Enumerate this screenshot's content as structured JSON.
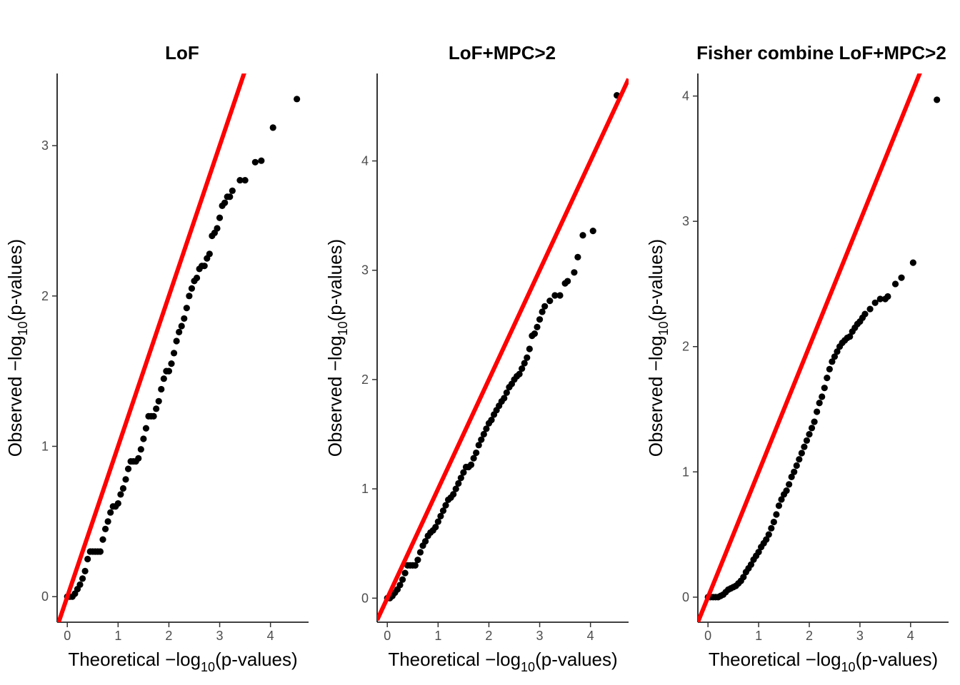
{
  "chart_data": [
    {
      "type": "scatter",
      "title": "LoF",
      "xlabel": {
        "prefix": "Theoretical ",
        "minus": "−",
        "log": "log",
        "base": "10",
        "suffix": "(p-values)"
      },
      "ylabel": {
        "prefix": "Observed ",
        "minus": "−",
        "log": "log",
        "base": "10",
        "suffix": "(p-values)"
      },
      "xlim": [
        -0.2,
        4.75
      ],
      "ylim": [
        -0.17,
        3.48
      ],
      "xticks": [
        0,
        1,
        2,
        3,
        4
      ],
      "yticks": [
        0,
        1,
        2,
        3
      ],
      "reference_line": {
        "slope": 1,
        "intercept": 0,
        "color": "#ff0000"
      },
      "series": [
        {
          "color": "#000000",
          "points": [
            [
              0.0,
              0.0
            ],
            [
              0.05,
              0.0
            ],
            [
              0.1,
              0.0
            ],
            [
              0.15,
              0.02
            ],
            [
              0.2,
              0.05
            ],
            [
              0.25,
              0.08
            ],
            [
              0.3,
              0.12
            ],
            [
              0.35,
              0.17
            ],
            [
              0.4,
              0.25
            ],
            [
              0.45,
              0.3
            ],
            [
              0.5,
              0.3
            ],
            [
              0.55,
              0.3
            ],
            [
              0.6,
              0.3
            ],
            [
              0.65,
              0.3
            ],
            [
              0.7,
              0.38
            ],
            [
              0.75,
              0.45
            ],
            [
              0.8,
              0.5
            ],
            [
              0.85,
              0.56
            ],
            [
              0.9,
              0.6
            ],
            [
              0.95,
              0.6
            ],
            [
              1.0,
              0.62
            ],
            [
              1.05,
              0.68
            ],
            [
              1.1,
              0.72
            ],
            [
              1.15,
              0.78
            ],
            [
              1.2,
              0.85
            ],
            [
              1.25,
              0.9
            ],
            [
              1.3,
              0.9
            ],
            [
              1.35,
              0.9
            ],
            [
              1.4,
              0.92
            ],
            [
              1.45,
              0.98
            ],
            [
              1.5,
              1.05
            ],
            [
              1.55,
              1.12
            ],
            [
              1.6,
              1.2
            ],
            [
              1.65,
              1.2
            ],
            [
              1.7,
              1.2
            ],
            [
              1.75,
              1.25
            ],
            [
              1.8,
              1.3
            ],
            [
              1.85,
              1.38
            ],
            [
              1.9,
              1.45
            ],
            [
              1.95,
              1.5
            ],
            [
              2.0,
              1.5
            ],
            [
              2.05,
              1.55
            ],
            [
              2.1,
              1.62
            ],
            [
              2.15,
              1.7
            ],
            [
              2.2,
              1.76
            ],
            [
              2.25,
              1.8
            ],
            [
              2.3,
              1.85
            ],
            [
              2.35,
              1.92
            ],
            [
              2.4,
              2.0
            ],
            [
              2.45,
              2.05
            ],
            [
              2.5,
              2.1
            ],
            [
              2.55,
              2.12
            ],
            [
              2.6,
              2.18
            ],
            [
              2.65,
              2.2
            ],
            [
              2.7,
              2.2
            ],
            [
              2.75,
              2.25
            ],
            [
              2.8,
              2.28
            ],
            [
              2.85,
              2.4
            ],
            [
              2.9,
              2.42
            ],
            [
              2.95,
              2.45
            ],
            [
              3.0,
              2.52
            ],
            [
              3.05,
              2.6
            ],
            [
              3.1,
              2.62
            ],
            [
              3.15,
              2.66
            ],
            [
              3.2,
              2.66
            ],
            [
              3.25,
              2.7
            ],
            [
              3.4,
              2.77
            ],
            [
              3.5,
              2.77
            ],
            [
              3.7,
              2.89
            ],
            [
              3.82,
              2.9
            ],
            [
              4.05,
              3.12
            ],
            [
              4.52,
              3.31
            ]
          ]
        }
      ]
    },
    {
      "type": "scatter",
      "title": "LoF+MPC>2",
      "xlabel": {
        "prefix": "Theoretical ",
        "minus": "−",
        "log": "log",
        "base": "10",
        "suffix": "(p-values)"
      },
      "ylabel": {
        "prefix": "Observed ",
        "minus": "−",
        "log": "log",
        "base": "10",
        "suffix": "(p-values)"
      },
      "xlim": [
        -0.2,
        4.75
      ],
      "ylim": [
        -0.22,
        4.8
      ],
      "xticks": [
        0,
        1,
        2,
        3,
        4
      ],
      "yticks": [
        0,
        1,
        2,
        3,
        4
      ],
      "reference_line": {
        "slope": 1,
        "intercept": 0,
        "color": "#ff0000"
      },
      "series": [
        {
          "color": "#000000",
          "points": [
            [
              0.0,
              0.0
            ],
            [
              0.05,
              0.0
            ],
            [
              0.1,
              0.02
            ],
            [
              0.15,
              0.05
            ],
            [
              0.2,
              0.08
            ],
            [
              0.25,
              0.12
            ],
            [
              0.3,
              0.17
            ],
            [
              0.35,
              0.23
            ],
            [
              0.4,
              0.3
            ],
            [
              0.45,
              0.3
            ],
            [
              0.5,
              0.3
            ],
            [
              0.55,
              0.3
            ],
            [
              0.6,
              0.35
            ],
            [
              0.65,
              0.42
            ],
            [
              0.7,
              0.48
            ],
            [
              0.75,
              0.52
            ],
            [
              0.8,
              0.57
            ],
            [
              0.85,
              0.6
            ],
            [
              0.9,
              0.62
            ],
            [
              0.95,
              0.65
            ],
            [
              1.0,
              0.7
            ],
            [
              1.05,
              0.75
            ],
            [
              1.1,
              0.8
            ],
            [
              1.15,
              0.85
            ],
            [
              1.2,
              0.9
            ],
            [
              1.25,
              0.92
            ],
            [
              1.3,
              0.95
            ],
            [
              1.35,
              1.0
            ],
            [
              1.4,
              1.05
            ],
            [
              1.45,
              1.1
            ],
            [
              1.5,
              1.15
            ],
            [
              1.55,
              1.2
            ],
            [
              1.6,
              1.2
            ],
            [
              1.65,
              1.22
            ],
            [
              1.7,
              1.28
            ],
            [
              1.75,
              1.33
            ],
            [
              1.8,
              1.4
            ],
            [
              1.85,
              1.45
            ],
            [
              1.9,
              1.5
            ],
            [
              1.95,
              1.55
            ],
            [
              2.0,
              1.6
            ],
            [
              2.05,
              1.63
            ],
            [
              2.1,
              1.68
            ],
            [
              2.15,
              1.72
            ],
            [
              2.2,
              1.76
            ],
            [
              2.25,
              1.8
            ],
            [
              2.3,
              1.83
            ],
            [
              2.35,
              1.88
            ],
            [
              2.4,
              1.93
            ],
            [
              2.45,
              1.96
            ],
            [
              2.5,
              2.0
            ],
            [
              2.55,
              2.03
            ],
            [
              2.6,
              2.05
            ],
            [
              2.65,
              2.1
            ],
            [
              2.7,
              2.15
            ],
            [
              2.75,
              2.2
            ],
            [
              2.8,
              2.28
            ],
            [
              2.85,
              2.4
            ],
            [
              2.9,
              2.42
            ],
            [
              2.95,
              2.48
            ],
            [
              3.0,
              2.55
            ],
            [
              3.05,
              2.62
            ],
            [
              3.1,
              2.67
            ],
            [
              3.2,
              2.72
            ],
            [
              3.3,
              2.77
            ],
            [
              3.4,
              2.77
            ],
            [
              3.5,
              2.88
            ],
            [
              3.55,
              2.9
            ],
            [
              3.68,
              2.98
            ],
            [
              3.75,
              3.12
            ],
            [
              3.85,
              3.32
            ],
            [
              4.05,
              3.36
            ],
            [
              4.52,
              4.6
            ]
          ]
        }
      ]
    },
    {
      "type": "scatter",
      "title": "Fisher combine LoF+MPC>2",
      "xlabel": {
        "prefix": "Theoretical ",
        "minus": "−",
        "log": "log",
        "base": "10",
        "suffix": "(p-values)"
      },
      "ylabel": {
        "prefix": "Observed ",
        "minus": "−",
        "log": "log",
        "base": "10",
        "suffix": "(p-values)"
      },
      "xlim": [
        -0.2,
        4.75
      ],
      "ylim": [
        -0.2,
        4.18
      ],
      "xticks": [
        0,
        1,
        2,
        3,
        4
      ],
      "yticks": [
        0,
        1,
        2,
        3,
        4
      ],
      "reference_line": {
        "slope": 1,
        "intercept": 0,
        "color": "#ff0000"
      },
      "series": [
        {
          "color": "#000000",
          "points": [
            [
              0.0,
              0.0
            ],
            [
              0.05,
              0.0
            ],
            [
              0.1,
              0.0
            ],
            [
              0.15,
              0.0
            ],
            [
              0.2,
              0.0
            ],
            [
              0.25,
              0.01
            ],
            [
              0.3,
              0.02
            ],
            [
              0.35,
              0.04
            ],
            [
              0.4,
              0.06
            ],
            [
              0.45,
              0.07
            ],
            [
              0.5,
              0.08
            ],
            [
              0.55,
              0.09
            ],
            [
              0.6,
              0.11
            ],
            [
              0.65,
              0.13
            ],
            [
              0.7,
              0.16
            ],
            [
              0.75,
              0.2
            ],
            [
              0.8,
              0.23
            ],
            [
              0.85,
              0.26
            ],
            [
              0.9,
              0.3
            ],
            [
              0.95,
              0.33
            ],
            [
              1.0,
              0.36
            ],
            [
              1.05,
              0.4
            ],
            [
              1.1,
              0.43
            ],
            [
              1.15,
              0.46
            ],
            [
              1.2,
              0.5
            ],
            [
              1.25,
              0.55
            ],
            [
              1.3,
              0.6
            ],
            [
              1.35,
              0.66
            ],
            [
              1.4,
              0.73
            ],
            [
              1.45,
              0.78
            ],
            [
              1.5,
              0.82
            ],
            [
              1.55,
              0.85
            ],
            [
              1.6,
              0.9
            ],
            [
              1.65,
              0.96
            ],
            [
              1.7,
              1.0
            ],
            [
              1.75,
              1.05
            ],
            [
              1.8,
              1.1
            ],
            [
              1.85,
              1.15
            ],
            [
              1.9,
              1.2
            ],
            [
              1.95,
              1.25
            ],
            [
              2.0,
              1.3
            ],
            [
              2.05,
              1.35
            ],
            [
              2.1,
              1.4
            ],
            [
              2.15,
              1.48
            ],
            [
              2.2,
              1.55
            ],
            [
              2.25,
              1.6
            ],
            [
              2.3,
              1.67
            ],
            [
              2.35,
              1.75
            ],
            [
              2.4,
              1.82
            ],
            [
              2.45,
              1.88
            ],
            [
              2.5,
              1.92
            ],
            [
              2.55,
              1.96
            ],
            [
              2.6,
              2.0
            ],
            [
              2.65,
              2.03
            ],
            [
              2.7,
              2.05
            ],
            [
              2.75,
              2.07
            ],
            [
              2.8,
              2.08
            ],
            [
              2.85,
              2.12
            ],
            [
              2.9,
              2.15
            ],
            [
              2.95,
              2.18
            ],
            [
              3.0,
              2.2
            ],
            [
              3.05,
              2.23
            ],
            [
              3.1,
              2.26
            ],
            [
              3.2,
              2.3
            ],
            [
              3.3,
              2.35
            ],
            [
              3.4,
              2.38
            ],
            [
              3.5,
              2.38
            ],
            [
              3.55,
              2.4
            ],
            [
              3.7,
              2.5
            ],
            [
              3.82,
              2.55
            ],
            [
              4.05,
              2.67
            ],
            [
              4.52,
              3.97
            ]
          ]
        }
      ]
    }
  ]
}
